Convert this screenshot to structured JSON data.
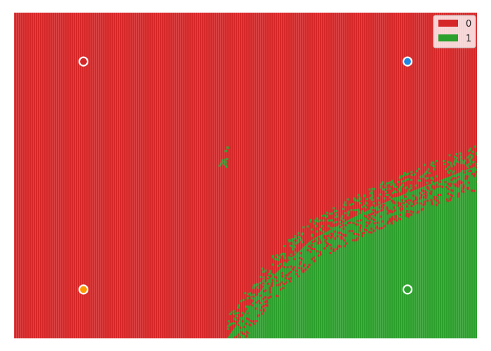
{
  "chart_data": {
    "type": "heatmap",
    "title": "",
    "xlabel": "",
    "ylabel": "",
    "xlim": [
      0,
      1
    ],
    "ylim": [
      0,
      1
    ],
    "grid": false,
    "axes_visible": false,
    "legend": {
      "placement": "top-right",
      "entries": [
        {
          "label": "0",
          "color": "#d62728"
        },
        {
          "label": "1",
          "color": "#2ca02c"
        }
      ]
    },
    "regions": {
      "class_0_color": "#d62728",
      "class_1_color": "#2ca02c",
      "boundary": {
        "description_points_x": [
          0.46,
          0.55,
          0.64,
          0.73,
          0.82,
          0.91,
          1.0
        ],
        "description_points_y": [
          0.0,
          0.18,
          0.3,
          0.37,
          0.43,
          0.48,
          0.53
        ]
      }
    },
    "points": [
      {
        "x": 0.15,
        "y": 0.85,
        "fill": "#d62728",
        "edge": "#ffffff"
      },
      {
        "x": 0.85,
        "y": 0.85,
        "fill": "#1f88e5",
        "edge": "#ffffff"
      },
      {
        "x": 0.15,
        "y": 0.15,
        "fill": "#ff9800",
        "edge": "#ffffff"
      },
      {
        "x": 0.85,
        "y": 0.15,
        "fill": "#2ca02c",
        "edge": "#ffffff"
      }
    ]
  }
}
